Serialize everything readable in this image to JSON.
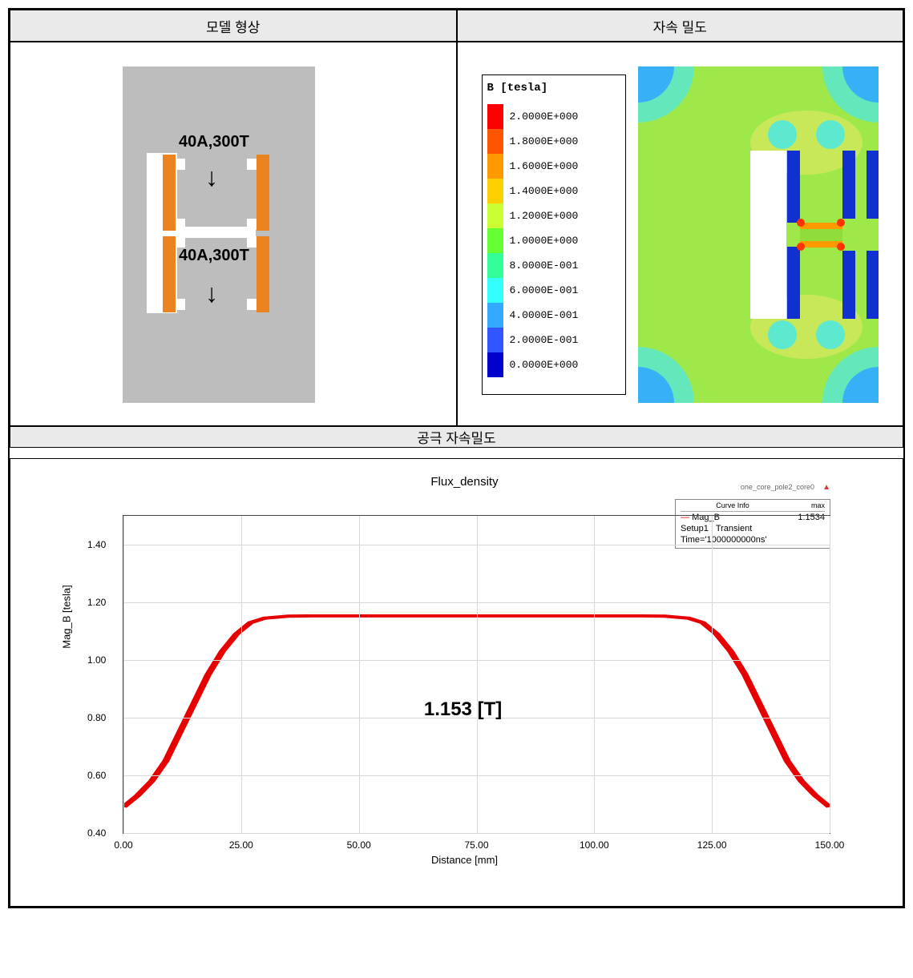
{
  "headers": {
    "model": "모델 형상",
    "flux": "자속 밀도",
    "airgap": "공극 자속밀도"
  },
  "model": {
    "bg_color": "#bdbdbd",
    "coil_color": "#eb8420",
    "labels": {
      "upper": "40A,300T",
      "lower": "40A,300T"
    }
  },
  "legend": {
    "title": "B [tesla]",
    "items": [
      {
        "color": "#ff0000",
        "val": "2.0000E+000"
      },
      {
        "color": "#ff5500",
        "val": "1.8000E+000"
      },
      {
        "color": "#ff9900",
        "val": "1.6000E+000"
      },
      {
        "color": "#ffd000",
        "val": "1.4000E+000"
      },
      {
        "color": "#ccff33",
        "val": "1.2000E+000"
      },
      {
        "color": "#66ff33",
        "val": "1.0000E+000"
      },
      {
        "color": "#33ff99",
        "val": "8.0000E-001"
      },
      {
        "color": "#33ffff",
        "val": "6.0000E-001"
      },
      {
        "color": "#33aaff",
        "val": "4.0000E-001"
      },
      {
        "color": "#3355ff",
        "val": "2.0000E-001"
      },
      {
        "color": "#0000cc",
        "val": "0.0000E+000"
      }
    ]
  },
  "chart": {
    "type": "line",
    "title": "Flux_density",
    "meta": "one_core_pole2_core0",
    "info": {
      "curve_hdr": "Curve Info",
      "max_hdr": "max",
      "curve": "Mag_B",
      "setup": "Setup1 : Transient",
      "time": "Time='1000000000ns'",
      "max": "1.1534"
    },
    "xlabel": "Distance [mm]",
    "ylabel": "Mag_B [tesla]",
    "peak_label": "1.153 [T]",
    "xlim": [
      0,
      150
    ],
    "ylim": [
      0.4,
      1.5
    ],
    "xticks": [
      0,
      25,
      50,
      75,
      100,
      125,
      150
    ],
    "xtick_labels": [
      "0.00",
      "25.00",
      "50.00",
      "75.00",
      "100.00",
      "125.00",
      "150.00"
    ],
    "yticks": [
      0.4,
      0.6,
      0.8,
      1.0,
      1.2,
      1.4
    ],
    "ytick_labels": [
      "0.40",
      "0.60",
      "0.80",
      "1.00",
      "1.20",
      "1.40"
    ],
    "line_color": "#e60000",
    "line_width": 2.5,
    "grid_color": "#d8d8d8",
    "background_color": "#ffffff",
    "points": [
      [
        0,
        0.49
      ],
      [
        3,
        0.53
      ],
      [
        6,
        0.58
      ],
      [
        9,
        0.65
      ],
      [
        12,
        0.75
      ],
      [
        15,
        0.85
      ],
      [
        18,
        0.95
      ],
      [
        21,
        1.03
      ],
      [
        24,
        1.09
      ],
      [
        27,
        1.13
      ],
      [
        30,
        1.145
      ],
      [
        35,
        1.152
      ],
      [
        40,
        1.153
      ],
      [
        50,
        1.153
      ],
      [
        60,
        1.153
      ],
      [
        75,
        1.153
      ],
      [
        90,
        1.153
      ],
      [
        100,
        1.153
      ],
      [
        110,
        1.153
      ],
      [
        115,
        1.152
      ],
      [
        120,
        1.145
      ],
      [
        123,
        1.13
      ],
      [
        126,
        1.09
      ],
      [
        129,
        1.03
      ],
      [
        132,
        0.95
      ],
      [
        135,
        0.85
      ],
      [
        138,
        0.75
      ],
      [
        141,
        0.65
      ],
      [
        144,
        0.58
      ],
      [
        147,
        0.53
      ],
      [
        150,
        0.49
      ]
    ]
  }
}
